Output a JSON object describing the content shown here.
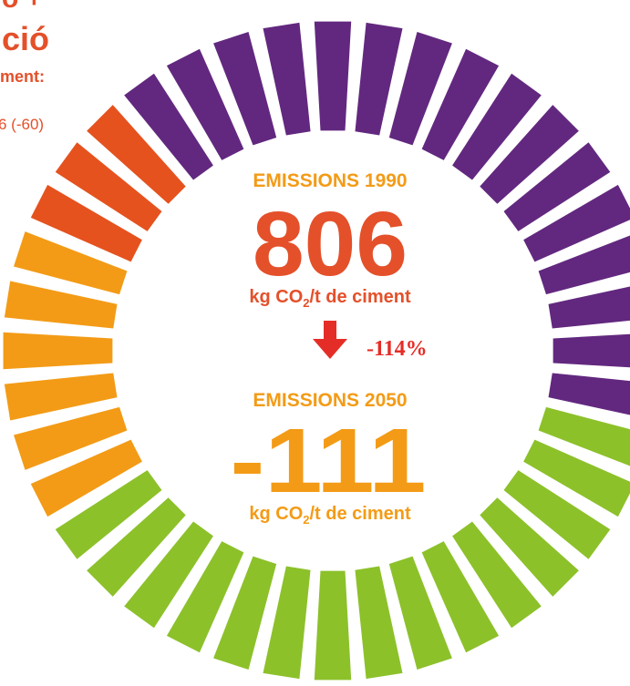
{
  "side": {
    "line0": "o +",
    "line1": "ció",
    "line2": "ment:",
    "line3": "6 (-60)"
  },
  "center": {
    "label1990": "EMISSIONS 1990",
    "value1990": "806",
    "unit1990": {
      "before": "kg CO",
      "sub": "2",
      "after": "/t de ciment"
    },
    "change": "-114%",
    "label2050": "EMISSIONS 2050",
    "value2050": "-111",
    "unit2050": {
      "before": "kg CO",
      "sub": "2",
      "after": "/t de ciment"
    }
  }
}
